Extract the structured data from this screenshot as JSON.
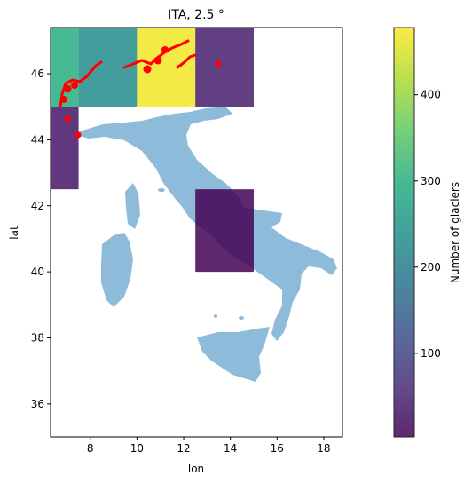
{
  "chart_data": {
    "type": "heatmap",
    "title": "ITA, 2.5 °",
    "xlabel": "lon",
    "ylabel": "lat",
    "xlim": [
      6.3,
      18.8
    ],
    "ylim": [
      35.0,
      47.4
    ],
    "xticks": [
      "8",
      "10",
      "12",
      "14",
      "16",
      "18"
    ],
    "yticks": [
      "36",
      "38",
      "40",
      "42",
      "44",
      "46"
    ],
    "grid": false,
    "cell_size_deg": 2.5,
    "colormap": "viridis",
    "cell_alpha": 0.85,
    "cells": [
      {
        "lon": 5.0,
        "lat": 45.0,
        "count": 300
      },
      {
        "lon": 7.5,
        "lat": 45.0,
        "count": 230
      },
      {
        "lon": 10.0,
        "lat": 45.0,
        "count": 470
      },
      {
        "lon": 12.5,
        "lat": 45.0,
        "count": 40
      },
      {
        "lon": 5.0,
        "lat": 42.5,
        "count": 30
      },
      {
        "lon": 12.5,
        "lat": 40.0,
        "count": 5
      }
    ],
    "colorbar": {
      "label": "Number of glaciers",
      "range": [
        3,
        478
      ],
      "ticks": [
        "100",
        "200",
        "300",
        "400"
      ]
    },
    "land_color": "#8fbbdb",
    "glacier_point_color": "#ff0000"
  }
}
